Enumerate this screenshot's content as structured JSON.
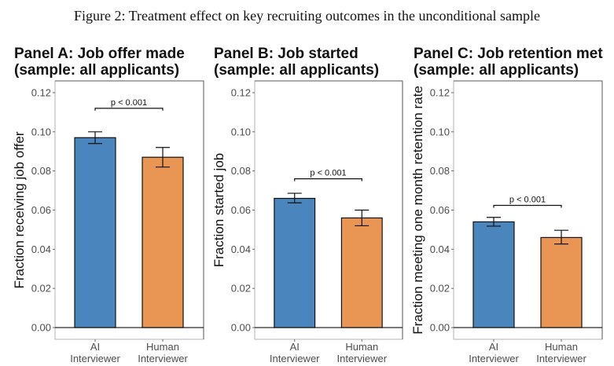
{
  "figure_title": "Figure 2: Treatment effect on key recruiting outcomes in the unconditional sample",
  "colors": {
    "ai": "#4a86bd",
    "human": "#e99553"
  },
  "chart_data": [
    {
      "type": "bar",
      "title": "Panel A: Job offer made",
      "subtitle": "(sample: all applicants)",
      "xlabel": "",
      "ylabel": "Fraction receiving job offer",
      "categories": [
        "AI Interviewer",
        "Human Interviewer"
      ],
      "category_lines": [
        [
          "AI",
          "Interviewer"
        ],
        [
          "Human",
          "Interviewer"
        ]
      ],
      "values": [
        0.097,
        0.087
      ],
      "ci_low": [
        0.094,
        0.082
      ],
      "ci_high": [
        0.1,
        0.092
      ],
      "ylim": [
        -0.006,
        0.126
      ],
      "yticks": [
        0.0,
        0.02,
        0.04,
        0.06,
        0.08,
        0.1,
        0.12
      ],
      "ytick_labels": [
        "0.00",
        "0.02",
        "0.04",
        "0.06",
        "0.08",
        "0.10",
        "0.12"
      ],
      "annotation": {
        "text": "p < 0.001",
        "y": 0.112
      },
      "grid": false
    },
    {
      "type": "bar",
      "title": "Panel B: Job started",
      "subtitle": "(sample: all applicants)",
      "xlabel": "",
      "ylabel": "Fraction started job",
      "categories": [
        "AI Interviewer",
        "Human Interviewer"
      ],
      "category_lines": [
        [
          "AI",
          "Interviewer"
        ],
        [
          "Human",
          "Interviewer"
        ]
      ],
      "values": [
        0.066,
        0.056
      ],
      "ci_low": [
        0.0637,
        0.052
      ],
      "ci_high": [
        0.0686,
        0.06
      ],
      "ylim": [
        -0.006,
        0.126
      ],
      "yticks": [
        0.0,
        0.02,
        0.04,
        0.06,
        0.08,
        0.1,
        0.12
      ],
      "ytick_labels": [
        "0.00",
        "0.02",
        "0.04",
        "0.06",
        "0.08",
        "0.10",
        "0.12"
      ],
      "annotation": {
        "text": "p < 0.001",
        "y": 0.076
      },
      "grid": false
    },
    {
      "type": "bar",
      "title": "Panel C: Job retention met",
      "subtitle": "(sample: all applicants)",
      "xlabel": "",
      "ylabel": "Fraction meeting one month retention rate",
      "categories": [
        "AI Interviewer",
        "Human Interviewer"
      ],
      "category_lines": [
        [
          "AI",
          "Interviewer"
        ],
        [
          "Human",
          "Interviewer"
        ]
      ],
      "values": [
        0.054,
        0.046
      ],
      "ci_low": [
        0.0518,
        0.0427
      ],
      "ci_high": [
        0.0563,
        0.0497
      ],
      "ylim": [
        -0.006,
        0.126
      ],
      "yticks": [
        0.0,
        0.02,
        0.04,
        0.06,
        0.08,
        0.1,
        0.12
      ],
      "ytick_labels": [
        "0.00",
        "0.02",
        "0.04",
        "0.06",
        "0.08",
        "0.10",
        "0.12"
      ],
      "annotation": {
        "text": "p < 0.001",
        "y": 0.0624
      },
      "grid": false
    }
  ]
}
